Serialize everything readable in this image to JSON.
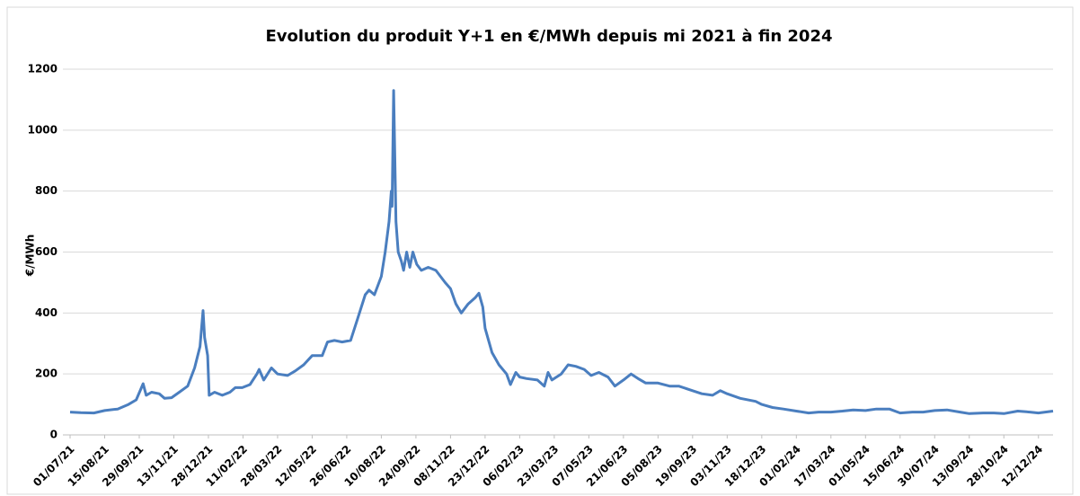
{
  "chart_data": {
    "type": "line",
    "title": "Evolution du produit Y+1 en €/MWh depuis mi 2021 à fin 2024",
    "y_label": "€/MWh",
    "x": [
      "01/07/21",
      "15/07/21",
      "01/08/21",
      "15/08/21",
      "01/09/21",
      "15/09/21",
      "25/09/21",
      "01/10/21",
      "04/10/21",
      "08/10/21",
      "15/10/21",
      "25/10/21",
      "01/11/21",
      "10/11/21",
      "20/11/21",
      "01/12/21",
      "10/12/21",
      "17/12/21",
      "21/12/21",
      "23/12/21",
      "27/12/21",
      "29/12/21",
      "05/01/22",
      "15/01/22",
      "25/01/22",
      "01/02/22",
      "10/02/22",
      "20/02/22",
      "01/03/22",
      "04/03/22",
      "10/03/22",
      "20/03/22",
      "28/03/22",
      "10/04/22",
      "20/04/22",
      "01/05/22",
      "12/05/22",
      "25/05/22",
      "01/06/22",
      "10/06/22",
      "20/06/22",
      "01/07/22",
      "10/07/22",
      "20/07/22",
      "25/07/22",
      "01/08/22",
      "10/08/22",
      "15/08/22",
      "20/08/22",
      "23/08/22",
      "24/08/22",
      "26/08/22",
      "29/08/22",
      "01/09/22",
      "05/09/22",
      "08/09/22",
      "12/09/22",
      "16/09/22",
      "20/09/22",
      "25/09/22",
      "01/10/22",
      "10/10/22",
      "20/10/22",
      "01/11/22",
      "08/11/22",
      "15/11/22",
      "22/11/22",
      "01/12/22",
      "10/12/22",
      "15/12/22",
      "20/12/22",
      "23/12/22",
      "01/01/23",
      "10/01/23",
      "20/01/23",
      "25/01/23",
      "01/02/23",
      "06/02/23",
      "15/02/23",
      "01/03/23",
      "10/03/23",
      "15/03/23",
      "20/03/23",
      "01/04/23",
      "10/04/23",
      "20/04/23",
      "01/05/23",
      "10/05/23",
      "20/05/23",
      "01/06/23",
      "10/06/23",
      "21/06/23",
      "01/07/23",
      "10/07/23",
      "20/07/23",
      "05/08/23",
      "20/08/23",
      "01/09/23",
      "19/09/23",
      "01/10/23",
      "15/10/23",
      "25/10/23",
      "03/11/23",
      "20/11/23",
      "10/12/23",
      "18/12/23",
      "01/01/24",
      "15/01/24",
      "01/02/24",
      "17/02/24",
      "01/03/24",
      "17/03/24",
      "01/04/24",
      "15/04/24",
      "01/05/24",
      "15/05/24",
      "01/06/24",
      "15/06/24",
      "01/07/24",
      "15/07/24",
      "30/07/24",
      "15/08/24",
      "01/09/24",
      "13/09/24",
      "01/10/24",
      "15/10/24",
      "28/10/24",
      "15/11/24",
      "01/12/24",
      "12/12/24",
      "31/12/24"
    ],
    "series": [
      {
        "name": "Y+1",
        "color": "#4a7ebf",
        "values": [
          75,
          73,
          72,
          80,
          85,
          100,
          115,
          150,
          168,
          130,
          140,
          135,
          120,
          122,
          140,
          160,
          220,
          290,
          408,
          320,
          260,
          130,
          140,
          130,
          140,
          155,
          155,
          165,
          200,
          215,
          180,
          220,
          200,
          195,
          210,
          230,
          260,
          260,
          305,
          310,
          305,
          310,
          380,
          460,
          475,
          460,
          520,
          600,
          700,
          800,
          750,
          1130,
          700,
          600,
          570,
          540,
          600,
          550,
          600,
          560,
          540,
          550,
          540,
          500,
          480,
          430,
          400,
          430,
          450,
          465,
          420,
          350,
          270,
          230,
          200,
          165,
          205,
          190,
          185,
          180,
          160,
          205,
          180,
          200,
          230,
          225,
          215,
          195,
          205,
          190,
          160,
          180,
          200,
          185,
          170,
          170,
          160,
          160,
          145,
          135,
          130,
          145,
          135,
          120,
          110,
          100,
          90,
          85,
          78,
          72,
          75,
          75,
          78,
          82,
          80,
          85,
          85,
          72,
          75,
          75,
          80,
          82,
          75,
          70,
          72,
          72,
          70,
          78,
          75,
          72,
          78
        ]
      }
    ],
    "xlim": [
      "01/07/21",
      "31/12/24"
    ],
    "xticks": [
      "01/07/21",
      "15/08/21",
      "29/09/21",
      "13/11/21",
      "28/12/21",
      "11/02/22",
      "28/03/22",
      "12/05/22",
      "26/06/22",
      "10/08/22",
      "24/09/22",
      "08/11/22",
      "23/12/22",
      "06/02/23",
      "23/03/23",
      "07/05/23",
      "21/06/23",
      "05/08/23",
      "19/09/23",
      "03/11/23",
      "18/12/23",
      "01/02/24",
      "17/03/24",
      "01/05/24",
      "15/06/24",
      "30/07/24",
      "13/09/24",
      "28/10/24",
      "12/12/24"
    ],
    "ylim": [
      0,
      1200
    ],
    "yticks": [
      0,
      200,
      400,
      600,
      800,
      1000,
      1200
    ],
    "grid": true
  }
}
